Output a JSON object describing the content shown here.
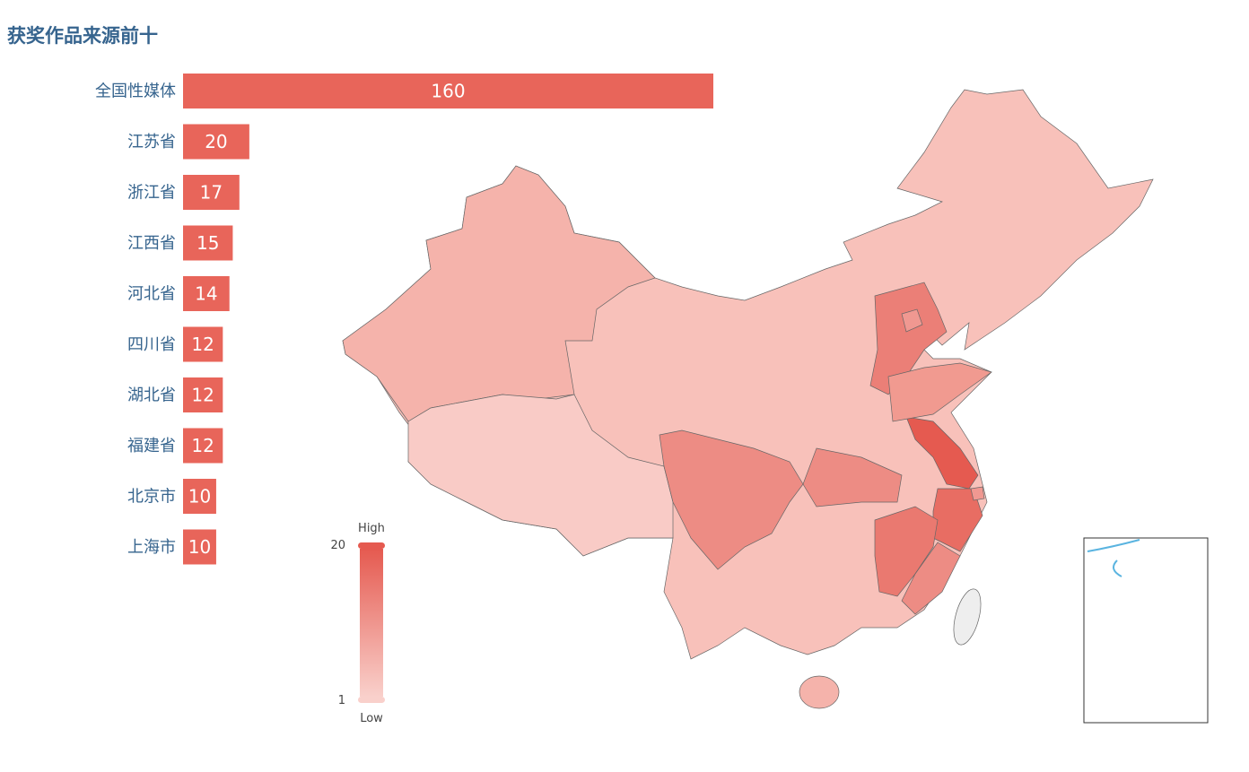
{
  "chart_data": [
    {
      "type": "bar",
      "orientation": "horizontal",
      "title": "获奖作品来源前十",
      "categories": [
        "全国性媒体",
        "江苏省",
        "浙江省",
        "江西省",
        "河北省",
        "四川省",
        "湖北省",
        "福建省",
        "北京市",
        "上海市"
      ],
      "values": [
        160,
        20,
        17,
        15,
        14,
        12,
        12,
        12,
        10,
        10
      ],
      "xlim": [
        0,
        160
      ],
      "color": "#e8655a",
      "data_labels": true
    },
    {
      "type": "map",
      "region": "China",
      "regions": [
        {
          "name": "江苏",
          "value": 20
        },
        {
          "name": "浙江",
          "value": 17
        },
        {
          "name": "江西",
          "value": 15
        },
        {
          "name": "河北",
          "value": 14
        },
        {
          "name": "四川",
          "value": 12
        },
        {
          "name": "湖北",
          "value": 12
        },
        {
          "name": "福建",
          "value": 12
        },
        {
          "name": "北京",
          "value": 10
        },
        {
          "name": "上海",
          "value": 10
        }
      ],
      "visual_map": {
        "min": 1,
        "max": 20,
        "min_text": "Low",
        "max_text": "High",
        "min_label": "1",
        "max_label": "20",
        "color_low": "#f9d0cb",
        "color_high": "#e55a50"
      }
    }
  ]
}
